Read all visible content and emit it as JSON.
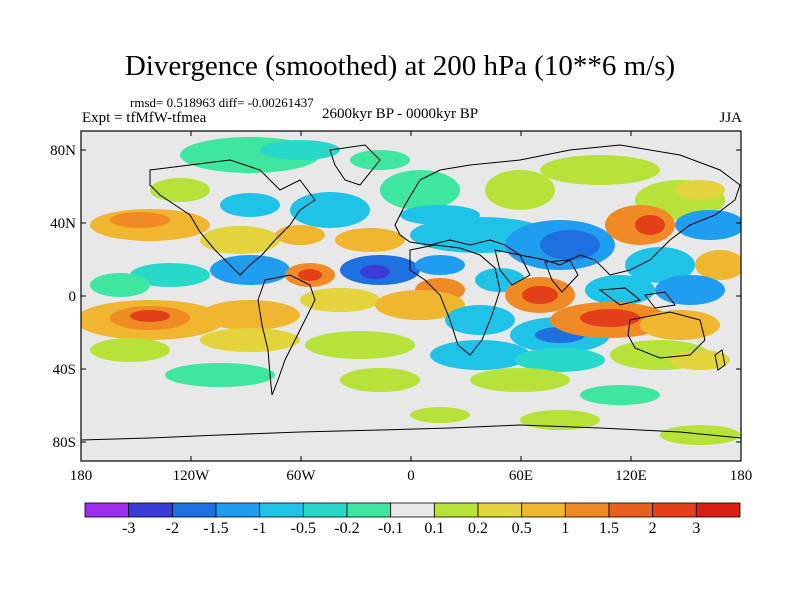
{
  "title": "Divergence (smoothed) at 200 hPa (10**6 m/s)",
  "stats": "rmsd= 0.518963 diff= -0.00261437",
  "left_label": "Expt = tfMfW-tfmea",
  "center_label": "2600kyr BP - 0000kyr BP",
  "right_label": "JJA",
  "lat_ticks": [
    "80N",
    "40N",
    "0",
    "40S",
    "80S"
  ],
  "lon_ticks": [
    "180",
    "120W",
    "60W",
    "0",
    "60E",
    "120E",
    "180"
  ],
  "colorbar": {
    "labels": [
      "-3",
      "-2",
      "-1.5",
      "-1",
      "-0.5",
      "-0.2",
      "-0.1",
      "0.1",
      "0.2",
      "0.5",
      "1",
      "1.5",
      "2",
      "3"
    ],
    "colors": [
      "#9d2bf0",
      "#3b3bd9",
      "#1e6fe0",
      "#1f9df0",
      "#1fc3e8",
      "#28d8c8",
      "#3ee6a0",
      "#e8e8e8",
      "#b7e23a",
      "#e2d43a",
      "#f0b630",
      "#f08a24",
      "#e85f1e",
      "#e3401a",
      "#d81f14"
    ]
  }
}
